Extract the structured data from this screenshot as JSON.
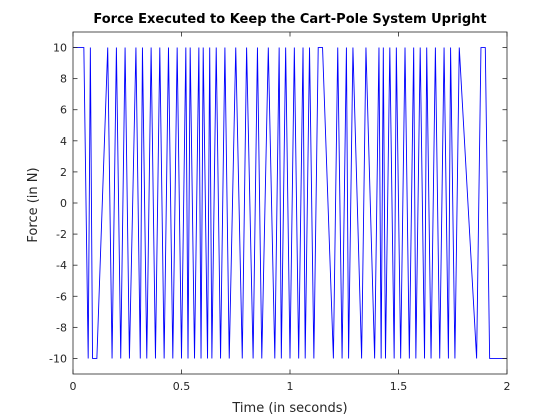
{
  "chart_data": {
    "type": "line",
    "title": "Force Executed to Keep the Cart-Pole System Upright",
    "xlabel": "Time (in seconds)",
    "ylabel": "Force (in N)",
    "xlim": [
      0,
      2
    ],
    "ylim": [
      -11,
      11
    ],
    "xticks": [
      0,
      0.5,
      1,
      1.5,
      2
    ],
    "xtick_labels": [
      "0",
      "0.5",
      "1",
      "1.5",
      "2"
    ],
    "yticks": [
      -10,
      -8,
      -6,
      -4,
      -2,
      0,
      2,
      4,
      6,
      8,
      10
    ],
    "ytick_labels": [
      "-10",
      "-8",
      "-6",
      "-4",
      "-2",
      "0",
      "2",
      "4",
      "6",
      "8",
      "10"
    ],
    "grid": false,
    "series": [
      {
        "color": "#0000ff",
        "x": [
          0,
          0.05,
          0.07,
          0.08,
          0.09,
          0.11,
          0.16,
          0.18,
          0.2,
          0.22,
          0.24,
          0.26,
          0.29,
          0.31,
          0.32,
          0.34,
          0.36,
          0.38,
          0.4,
          0.42,
          0.44,
          0.46,
          0.48,
          0.5,
          0.52,
          0.53,
          0.54,
          0.56,
          0.58,
          0.59,
          0.6,
          0.62,
          0.63,
          0.64,
          0.66,
          0.68,
          0.7,
          0.72,
          0.75,
          0.78,
          0.8,
          0.83,
          0.85,
          0.87,
          0.9,
          0.93,
          0.95,
          0.96,
          0.98,
          1.0,
          1.02,
          1.04,
          1.06,
          1.07,
          1.09,
          1.11,
          1.13,
          1.15,
          1.2,
          1.22,
          1.24,
          1.26,
          1.27,
          1.29,
          1.33,
          1.35,
          1.39,
          1.41,
          1.42,
          1.43,
          1.44,
          1.46,
          1.48,
          1.49,
          1.51,
          1.53,
          1.55,
          1.57,
          1.58,
          1.6,
          1.62,
          1.63,
          1.65,
          1.67,
          1.69,
          1.71,
          1.73,
          1.74,
          1.76,
          1.78,
          1.86,
          1.88,
          1.9,
          1.92,
          2.0
        ],
        "y": [
          10,
          10,
          -10,
          10,
          -10,
          -10,
          10,
          -10,
          10,
          -10,
          10,
          -10,
          10,
          -10,
          10,
          -10,
          10,
          -10,
          10,
          -10,
          10,
          -10,
          10,
          -10,
          10,
          -10,
          10,
          -10,
          10,
          -10,
          10,
          -10,
          10,
          -10,
          10,
          -10,
          10,
          -10,
          10,
          -10,
          10,
          -10,
          10,
          -10,
          10,
          -10,
          10,
          -10,
          10,
          -10,
          10,
          -10,
          10,
          -10,
          10,
          -10,
          10,
          10,
          -10,
          10,
          -10,
          10,
          -10,
          10,
          -10,
          10,
          -10,
          10,
          -10,
          10,
          -10,
          10,
          -10,
          10,
          -10,
          10,
          -10,
          10,
          -10,
          10,
          -10,
          10,
          -10,
          10,
          -10,
          10,
          -10,
          10,
          -10,
          10,
          -10,
          10,
          10,
          -10,
          -10
        ]
      }
    ]
  }
}
